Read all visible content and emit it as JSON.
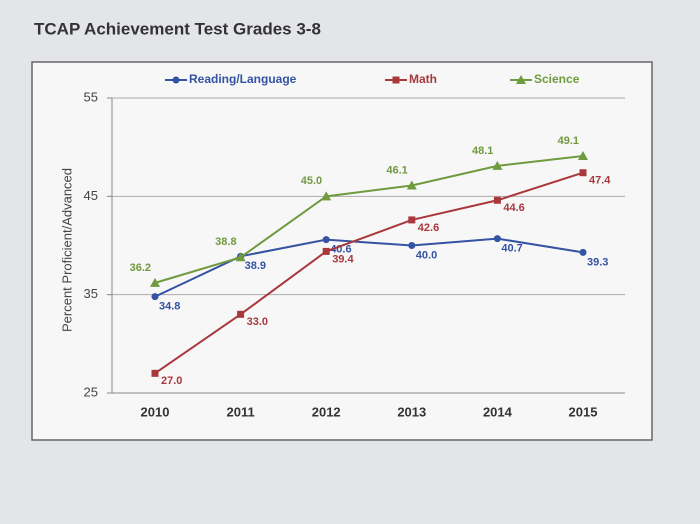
{
  "chart_data": {
    "type": "line",
    "title": "TCAP Achievement Test Grades 3-8",
    "y_label": "Percent Proficient/Advanced",
    "categories": [
      "2010",
      "2011",
      "2012",
      "2013",
      "2014",
      "2015"
    ],
    "series": [
      {
        "name": "Reading/Language",
        "color": "#3553a3",
        "marker": "circle",
        "values": [
          34.8,
          38.9,
          40.6,
          40.0,
          40.7,
          39.3
        ],
        "value_labels": [
          "34.8",
          "38.9",
          "40.6",
          "40.0",
          "40.7",
          "39.3"
        ]
      },
      {
        "name": "Math",
        "color": "#a8383b",
        "marker": "square",
        "values": [
          27.0,
          33.0,
          39.4,
          42.6,
          44.6,
          47.4
        ],
        "value_labels": [
          "27.0",
          "33.0",
          "39.4",
          "42.6",
          "44.6",
          "47.4"
        ]
      },
      {
        "name": "Science",
        "color": "#6f9a3e",
        "marker": "triangle",
        "values": [
          36.2,
          38.8,
          45.0,
          46.1,
          48.1,
          49.1
        ],
        "value_labels": [
          "36.2",
          "38.8",
          "45.0",
          "46.1",
          "48.1",
          "49.1"
        ]
      }
    ],
    "ylim": [
      25,
      55
    ],
    "yticks": [
      25,
      35,
      45,
      55
    ],
    "grid": true
  }
}
